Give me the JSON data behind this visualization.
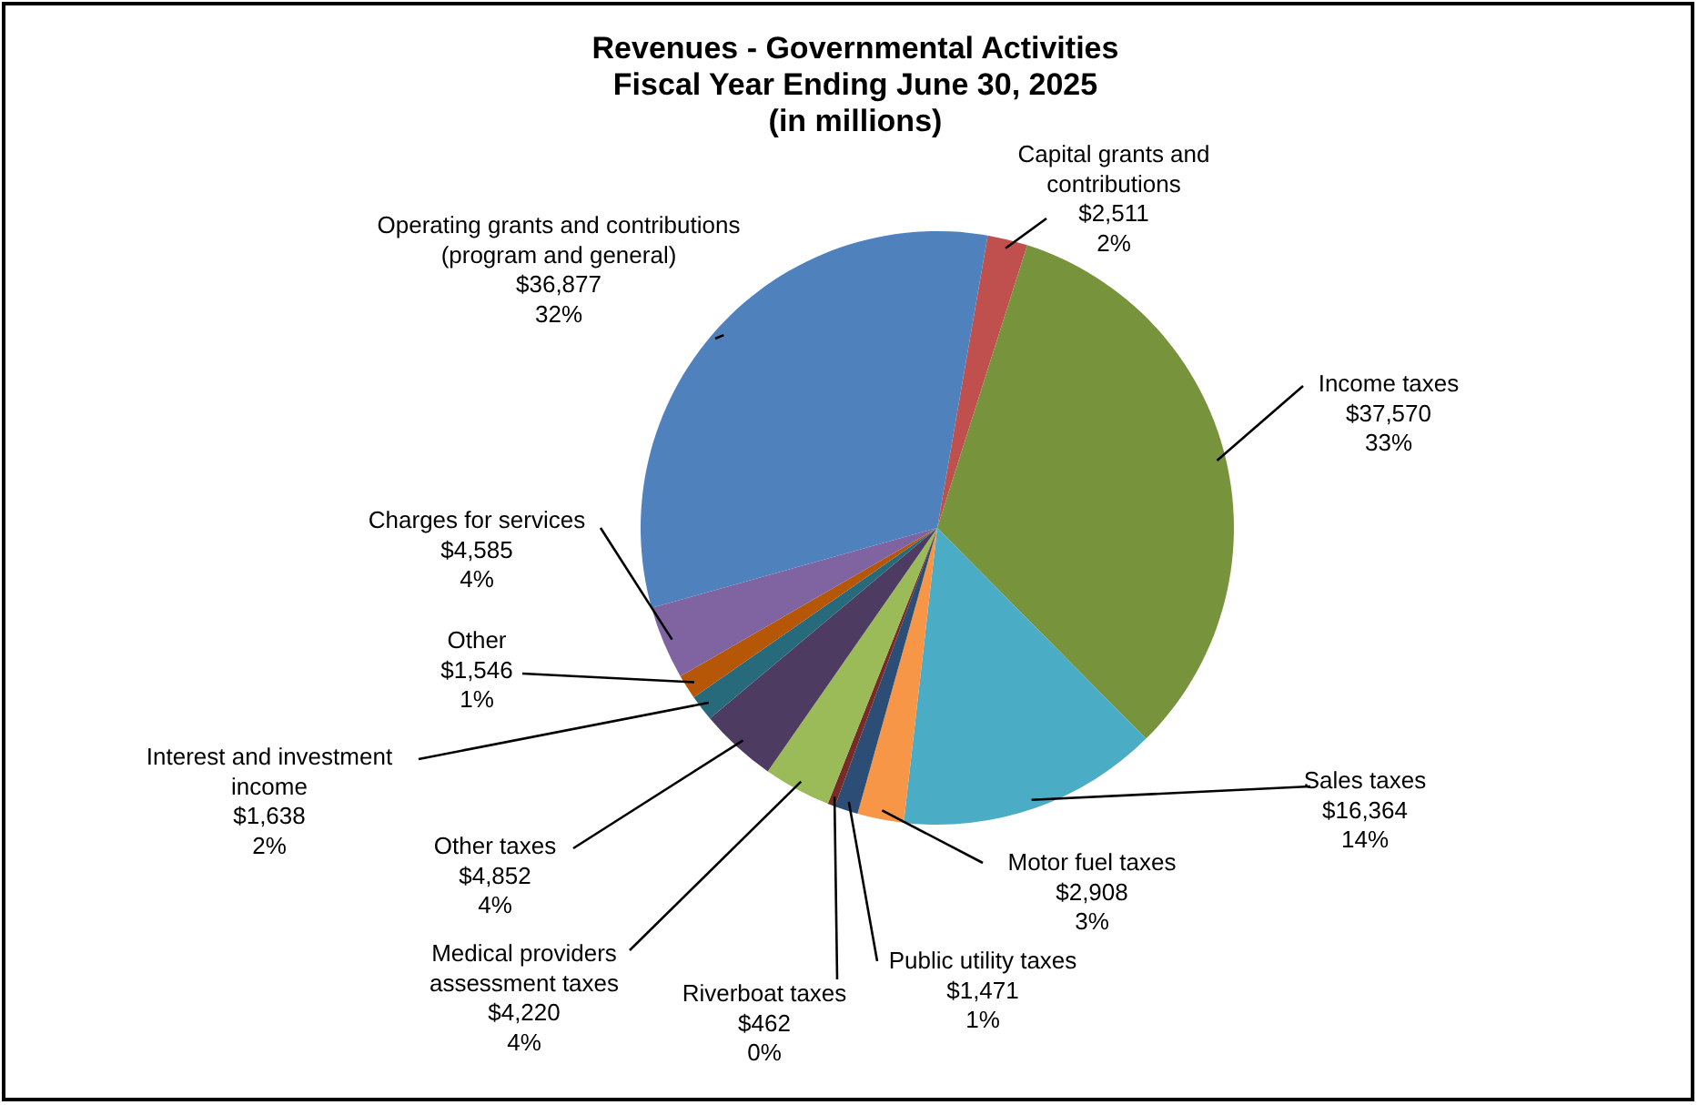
{
  "chart_data": {
    "type": "pie",
    "title": "Revenues - Governmental Activities\nFiscal Year Ending June 30, 2025\n(in millions)",
    "categories": [
      "Capital grants and contributions",
      "Income taxes",
      "Sales taxes",
      "Motor fuel taxes",
      "Public utility taxes",
      "Riverboat taxes",
      "Medical providers assessment taxes",
      "Other taxes",
      "Interest and investment income",
      "Other",
      "Charges for services",
      "Operating grants and contributions (program and general)"
    ],
    "values": [
      2511,
      37570,
      16364,
      2908,
      1471,
      462,
      4220,
      4852,
      1638,
      1546,
      4585,
      36877
    ],
    "value_labels": [
      "$2,511\n2%",
      "$37,570\n33%",
      "$16,364\n14%",
      "$2,908\n3%",
      "$1,471\n1%",
      "$462\n0%",
      "$4,220\n4%",
      "$4,852\n4%",
      "$1,638\n2%",
      "$1,546\n1%",
      "$4,585\n4%",
      "$36,877\n32%"
    ],
    "colors": [
      "#c0504d",
      "#77933c",
      "#4bacc6",
      "#f79646",
      "#2c4d75",
      "#772c2a",
      "#9bbb59",
      "#4d3b62",
      "#276a7c",
      "#b65708",
      "#8064a2",
      "#4f81bd"
    ]
  }
}
